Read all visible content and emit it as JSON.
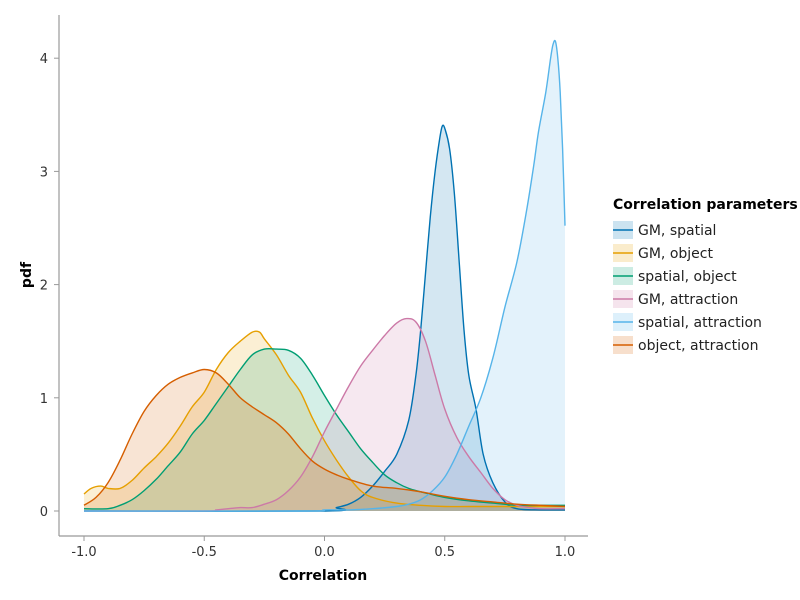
{
  "chart_data": {
    "type": "area",
    "title": "",
    "xlabel": "Correlation",
    "ylabel": "pdf",
    "xlim": [
      -1.0,
      1.0
    ],
    "ylim": [
      0,
      4.2
    ],
    "xticks": [
      -1.0,
      -0.5,
      0.0,
      0.5,
      1.0
    ],
    "xtick_labels": [
      "-1.0",
      "-0.5",
      "0.0",
      "0.5",
      "1.0"
    ],
    "yticks": [
      0,
      1,
      2,
      3,
      4
    ],
    "ytick_labels": [
      "0",
      "1",
      "2",
      "3",
      "4"
    ],
    "grid": false,
    "legend": {
      "title": "Correlation parameters",
      "position": "right"
    },
    "series": [
      {
        "name": "GM, spatial",
        "color": "#0072B2",
        "points": [
          [
            -1.0,
            0
          ],
          [
            0.0,
            0
          ],
          [
            0.05,
            0.03
          ],
          [
            0.1,
            0.06
          ],
          [
            0.15,
            0.12
          ],
          [
            0.2,
            0.22
          ],
          [
            0.25,
            0.35
          ],
          [
            0.3,
            0.5
          ],
          [
            0.35,
            0.8
          ],
          [
            0.38,
            1.2
          ],
          [
            0.4,
            1.6
          ],
          [
            0.42,
            2.1
          ],
          [
            0.44,
            2.6
          ],
          [
            0.46,
            3.0
          ],
          [
            0.48,
            3.3
          ],
          [
            0.49,
            3.4
          ],
          [
            0.5,
            3.38
          ],
          [
            0.52,
            3.2
          ],
          [
            0.54,
            2.8
          ],
          [
            0.56,
            2.2
          ],
          [
            0.58,
            1.6
          ],
          [
            0.6,
            1.2
          ],
          [
            0.63,
            0.9
          ],
          [
            0.66,
            0.5
          ],
          [
            0.7,
            0.25
          ],
          [
            0.75,
            0.08
          ],
          [
            0.8,
            0.02
          ],
          [
            0.9,
            0.01
          ],
          [
            1.0,
            0.01
          ]
        ]
      },
      {
        "name": "GM, object",
        "color": "#E69F00",
        "points": [
          [
            -1.0,
            0.15
          ],
          [
            -0.97,
            0.2
          ],
          [
            -0.93,
            0.22
          ],
          [
            -0.9,
            0.2
          ],
          [
            -0.85,
            0.2
          ],
          [
            -0.8,
            0.27
          ],
          [
            -0.75,
            0.38
          ],
          [
            -0.7,
            0.48
          ],
          [
            -0.65,
            0.6
          ],
          [
            -0.6,
            0.75
          ],
          [
            -0.55,
            0.92
          ],
          [
            -0.5,
            1.05
          ],
          [
            -0.45,
            1.25
          ],
          [
            -0.4,
            1.4
          ],
          [
            -0.35,
            1.5
          ],
          [
            -0.3,
            1.58
          ],
          [
            -0.27,
            1.58
          ],
          [
            -0.25,
            1.52
          ],
          [
            -0.2,
            1.38
          ],
          [
            -0.15,
            1.2
          ],
          [
            -0.1,
            1.05
          ],
          [
            -0.05,
            0.82
          ],
          [
            0.0,
            0.62
          ],
          [
            0.05,
            0.45
          ],
          [
            0.1,
            0.3
          ],
          [
            0.15,
            0.18
          ],
          [
            0.2,
            0.12
          ],
          [
            0.3,
            0.07
          ],
          [
            0.4,
            0.05
          ],
          [
            0.5,
            0.04
          ],
          [
            0.6,
            0.04
          ],
          [
            0.7,
            0.04
          ],
          [
            0.8,
            0.04
          ],
          [
            0.9,
            0.04
          ],
          [
            1.0,
            0.04
          ]
        ]
      },
      {
        "name": "spatial, object",
        "color": "#009E73",
        "points": [
          [
            -1.0,
            0.02
          ],
          [
            -0.9,
            0.02
          ],
          [
            -0.85,
            0.05
          ],
          [
            -0.8,
            0.1
          ],
          [
            -0.75,
            0.18
          ],
          [
            -0.7,
            0.28
          ],
          [
            -0.65,
            0.4
          ],
          [
            -0.6,
            0.52
          ],
          [
            -0.55,
            0.68
          ],
          [
            -0.5,
            0.8
          ],
          [
            -0.45,
            0.95
          ],
          [
            -0.4,
            1.1
          ],
          [
            -0.35,
            1.25
          ],
          [
            -0.3,
            1.38
          ],
          [
            -0.25,
            1.43
          ],
          [
            -0.2,
            1.43
          ],
          [
            -0.15,
            1.42
          ],
          [
            -0.1,
            1.35
          ],
          [
            -0.05,
            1.2
          ],
          [
            0.0,
            1.02
          ],
          [
            0.05,
            0.85
          ],
          [
            0.1,
            0.7
          ],
          [
            0.15,
            0.55
          ],
          [
            0.2,
            0.43
          ],
          [
            0.25,
            0.32
          ],
          [
            0.3,
            0.25
          ],
          [
            0.35,
            0.2
          ],
          [
            0.4,
            0.17
          ],
          [
            0.5,
            0.12
          ],
          [
            0.6,
            0.09
          ],
          [
            0.7,
            0.07
          ],
          [
            0.8,
            0.05
          ],
          [
            0.9,
            0.05
          ],
          [
            1.0,
            0.05
          ]
        ]
      },
      {
        "name": "GM, attraction",
        "color": "#CC79A7",
        "points": [
          [
            -1.0,
            0
          ],
          [
            -0.5,
            0
          ],
          [
            -0.45,
            0.01
          ],
          [
            -0.4,
            0.02
          ],
          [
            -0.35,
            0.03
          ],
          [
            -0.3,
            0.03
          ],
          [
            -0.25,
            0.06
          ],
          [
            -0.2,
            0.1
          ],
          [
            -0.15,
            0.18
          ],
          [
            -0.1,
            0.3
          ],
          [
            -0.05,
            0.48
          ],
          [
            0.0,
            0.7
          ],
          [
            0.05,
            0.9
          ],
          [
            0.1,
            1.1
          ],
          [
            0.15,
            1.28
          ],
          [
            0.2,
            1.42
          ],
          [
            0.25,
            1.55
          ],
          [
            0.3,
            1.66
          ],
          [
            0.34,
            1.7
          ],
          [
            0.38,
            1.67
          ],
          [
            0.42,
            1.5
          ],
          [
            0.46,
            1.2
          ],
          [
            0.5,
            0.9
          ],
          [
            0.55,
            0.65
          ],
          [
            0.6,
            0.48
          ],
          [
            0.65,
            0.34
          ],
          [
            0.7,
            0.2
          ],
          [
            0.75,
            0.1
          ],
          [
            0.8,
            0.05
          ],
          [
            0.85,
            0.03
          ],
          [
            0.9,
            0.02
          ],
          [
            1.0,
            0.02
          ]
        ]
      },
      {
        "name": "spatial, attraction",
        "color": "#56B4E9",
        "points": [
          [
            -1.0,
            0
          ],
          [
            -0.1,
            0
          ],
          [
            0.0,
            0.01
          ],
          [
            0.1,
            0.01
          ],
          [
            0.2,
            0.02
          ],
          [
            0.3,
            0.04
          ],
          [
            0.35,
            0.06
          ],
          [
            0.4,
            0.1
          ],
          [
            0.45,
            0.18
          ],
          [
            0.5,
            0.3
          ],
          [
            0.55,
            0.5
          ],
          [
            0.6,
            0.75
          ],
          [
            0.65,
            1.0
          ],
          [
            0.7,
            1.35
          ],
          [
            0.75,
            1.8
          ],
          [
            0.8,
            2.2
          ],
          [
            0.84,
            2.65
          ],
          [
            0.87,
            3.05
          ],
          [
            0.89,
            3.35
          ],
          [
            0.92,
            3.7
          ],
          [
            0.94,
            4.0
          ],
          [
            0.95,
            4.12
          ],
          [
            0.96,
            4.15
          ],
          [
            0.97,
            4.0
          ],
          [
            0.98,
            3.7
          ],
          [
            0.99,
            3.2
          ],
          [
            1.0,
            2.52
          ]
        ]
      },
      {
        "name": "object, attraction",
        "color": "#D55E00",
        "points": [
          [
            -1.0,
            0.05
          ],
          [
            -0.95,
            0.12
          ],
          [
            -0.9,
            0.25
          ],
          [
            -0.85,
            0.45
          ],
          [
            -0.8,
            0.68
          ],
          [
            -0.75,
            0.88
          ],
          [
            -0.7,
            1.02
          ],
          [
            -0.65,
            1.12
          ],
          [
            -0.6,
            1.18
          ],
          [
            -0.55,
            1.22
          ],
          [
            -0.5,
            1.25
          ],
          [
            -0.45,
            1.22
          ],
          [
            -0.4,
            1.12
          ],
          [
            -0.35,
            1.0
          ],
          [
            -0.3,
            0.92
          ],
          [
            -0.25,
            0.85
          ],
          [
            -0.2,
            0.78
          ],
          [
            -0.15,
            0.68
          ],
          [
            -0.1,
            0.55
          ],
          [
            -0.05,
            0.44
          ],
          [
            0.0,
            0.37
          ],
          [
            0.05,
            0.32
          ],
          [
            0.1,
            0.28
          ],
          [
            0.2,
            0.22
          ],
          [
            0.3,
            0.2
          ],
          [
            0.4,
            0.17
          ],
          [
            0.5,
            0.13
          ],
          [
            0.6,
            0.1
          ],
          [
            0.7,
            0.08
          ],
          [
            0.8,
            0.06
          ],
          [
            0.9,
            0.05
          ],
          [
            1.0,
            0.04
          ]
        ]
      }
    ]
  }
}
